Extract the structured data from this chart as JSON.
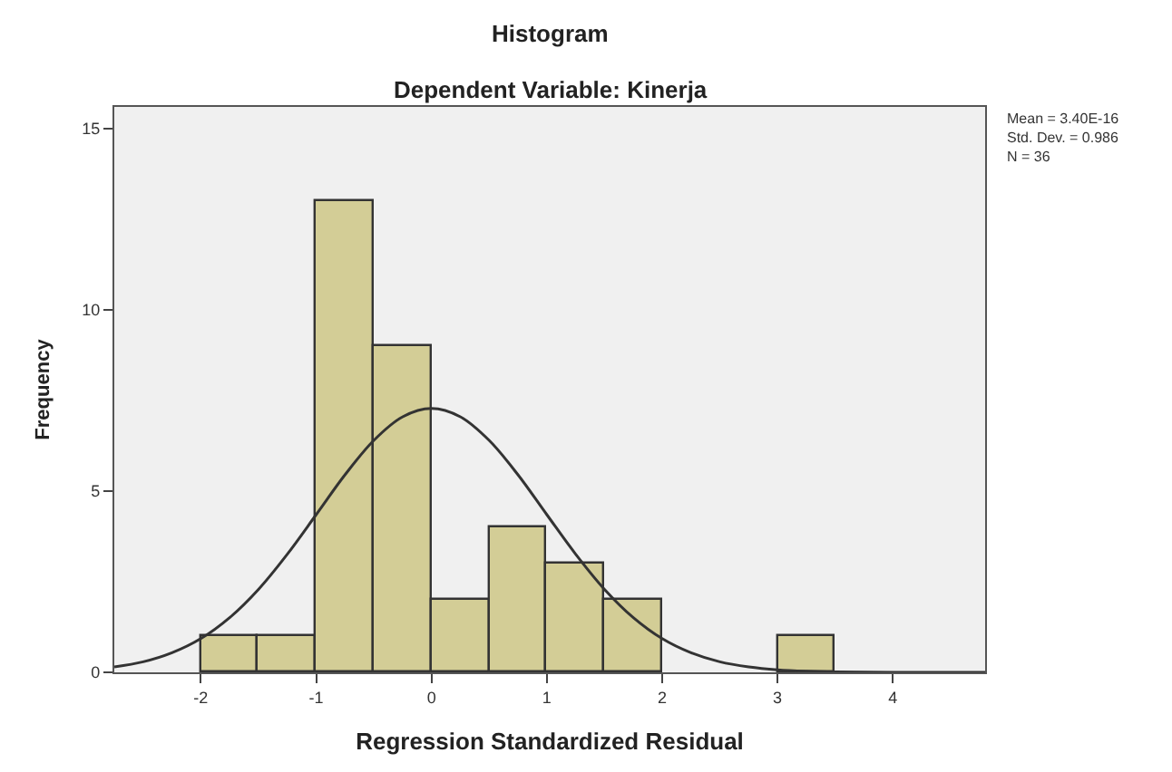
{
  "chart_data": {
    "type": "histogram",
    "title": "Histogram",
    "subtitle": "Dependent Variable: Kinerja",
    "xlabel": "Regression Standardized Residual",
    "ylabel": "Frequency",
    "bins": [
      -2,
      -1.5,
      -1,
      -0.5,
      0,
      0.5,
      1,
      1.5,
      2,
      2.5,
      3,
      3.5
    ],
    "values": [
      1,
      1,
      13,
      9,
      2,
      4,
      3,
      2,
      0,
      0,
      1
    ],
    "color": "#d3cd96",
    "series": [
      {
        "type": "line",
        "color": "#333333",
        "x": [
          -2.75,
          -2.5,
          -2.25,
          -2,
          -1.75,
          -1.5,
          -1.25,
          -1,
          -0.75,
          -0.5,
          -0.25,
          0,
          0.25,
          0.5,
          0.75,
          1,
          1.25,
          1.5,
          1.75,
          2,
          2.25,
          2.5,
          2.75,
          3,
          3.25,
          3.5,
          4,
          4.8
        ],
        "values": [
          0.15,
          0.29,
          0.54,
          0.93,
          1.51,
          2.29,
          3.26,
          4.35,
          5.45,
          6.4,
          7.05,
          7.28,
          7.05,
          6.4,
          5.45,
          4.35,
          3.26,
          2.29,
          1.51,
          0.93,
          0.54,
          0.29,
          0.15,
          0.07,
          0.03,
          0.01,
          0,
          0
        ]
      }
    ],
    "annotations": [
      "Mean = 3.40E-16\nStd. Dev. = 0.986\nN = 36"
    ],
    "xlim": [
      -2.75,
      4.8
    ],
    "ylim": [
      0,
      15.6
    ],
    "xticks": [
      -2,
      -1,
      0,
      1,
      2,
      3,
      4
    ],
    "yticks": [
      0,
      5,
      10,
      15
    ],
    "grid": false
  }
}
